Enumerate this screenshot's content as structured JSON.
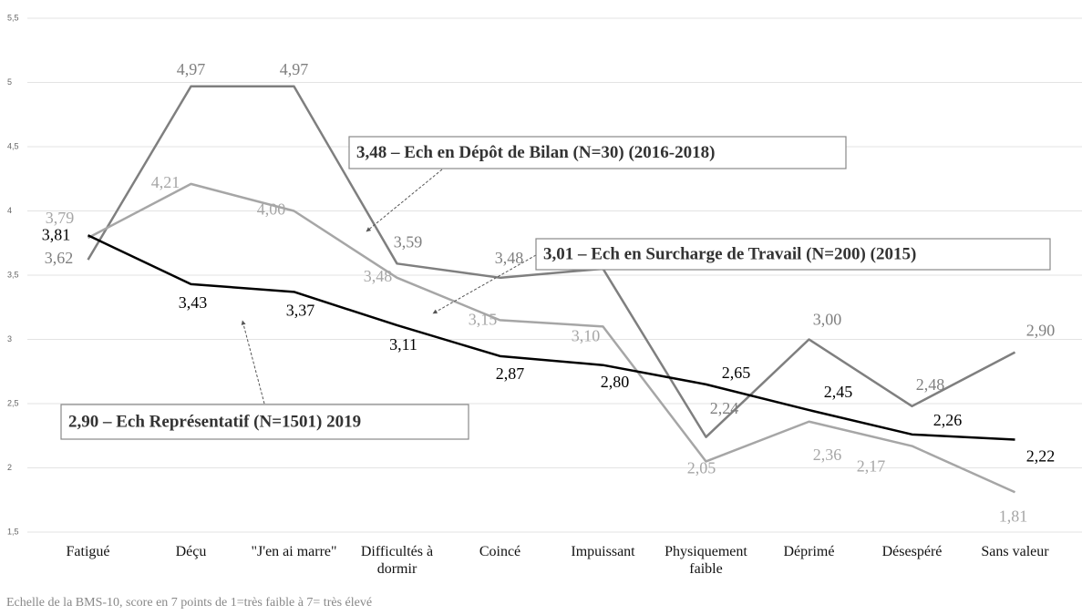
{
  "chart_data": {
    "type": "line",
    "categories": [
      "Fatigué",
      "Déçu",
      "\"J'en ai marre\"",
      "Difficultés à dormir",
      "Coincé",
      "Impuissant",
      "Physiquement faible",
      "Déprimé",
      "Désespéré",
      "Sans valeur"
    ],
    "series": [
      {
        "name": "3,48 – Ech en Dépôt de Bilan (N=30) (2016-2018)",
        "color": "#7f7f7f",
        "values": [
          3.62,
          4.97,
          4.97,
          3.59,
          3.48,
          3.55,
          2.24,
          3.0,
          2.48,
          2.9
        ],
        "value_labels": [
          "3,62",
          "4,97",
          "4,97",
          "3,59",
          "3,48",
          "3,55",
          "2,24",
          "3,00",
          "2,48",
          "2,90"
        ]
      },
      {
        "name": "3,01 – Ech en Surcharge de Travail (N=200) (2015)",
        "color": "#a6a6a6",
        "values": [
          3.79,
          4.21,
          4.0,
          3.48,
          3.15,
          3.1,
          2.05,
          2.36,
          2.17,
          1.81
        ],
        "value_labels": [
          "3,79",
          "4,21",
          "4,00",
          "3,48",
          "3,15",
          "3,10",
          "2,05",
          "2,36",
          "2,17",
          "1,81"
        ]
      },
      {
        "name": "2,90 – Ech Représentatif (N=1501) 2019",
        "color": "#000000",
        "values": [
          3.81,
          3.43,
          3.37,
          3.11,
          2.87,
          2.8,
          2.65,
          2.45,
          2.26,
          2.22
        ],
        "value_labels": [
          "3,81",
          "3,43",
          "3,37",
          "3,11",
          "2,87",
          "2,80",
          "2,65",
          "2,45",
          "2,26",
          "2,22"
        ]
      }
    ],
    "ylim": [
      1.5,
      5.5
    ],
    "yticks": [
      {
        "value": 1.5,
        "label": "1,5"
      },
      2,
      {
        "value": 2.5,
        "label": "2,5"
      },
      3,
      {
        "value": 3.5,
        "label": "3,5"
      },
      4,
      {
        "value": 4.5,
        "label": "4,5"
      },
      5,
      {
        "value": 5.5,
        "label": "5,5"
      }
    ],
    "grid": true,
    "footnote": "Echelle de la BMS-10, score en 7 points de 1=très faible à 7= très élevé"
  }
}
